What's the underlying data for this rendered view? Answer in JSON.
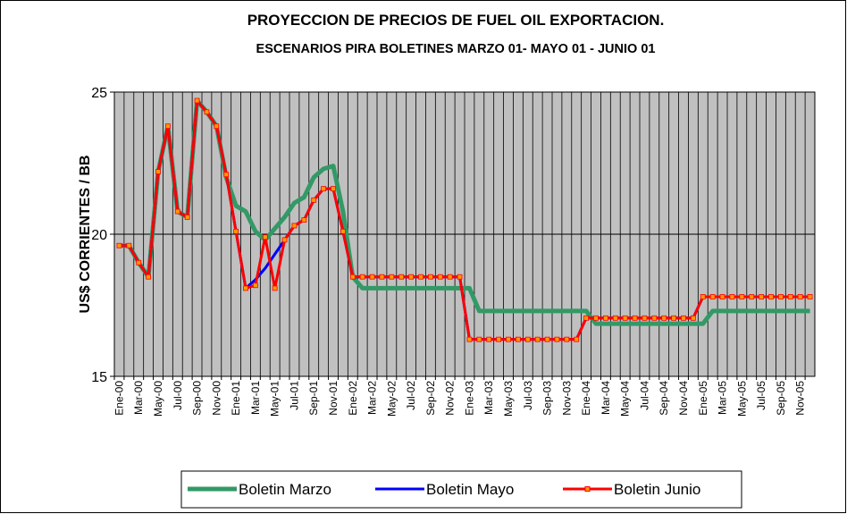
{
  "chart_data": {
    "type": "line",
    "title": "PROYECCION DE PRECIOS DE FUEL OIL EXPORTACION.",
    "subtitle": "ESCENARIOS  PIRA BOLETINES   MARZO 01- MAYO 01 - JUNIO 01",
    "y_label": "US$ CORRIENTES / BB",
    "categories": [
      "Ene-00",
      null,
      "Mar-00",
      null,
      "May-00",
      null,
      "Jul-00",
      null,
      "Sep-00",
      null,
      "Nov-00",
      null,
      "Ene-01",
      null,
      "Mar-01",
      null,
      "May-01",
      null,
      "Jul-01",
      null,
      "Sep-01",
      null,
      "Nov-01",
      null,
      "Ene-02",
      null,
      "Mar-02",
      null,
      "May-02",
      null,
      "Jul-02",
      null,
      "Sep-02",
      null,
      "Nov-02",
      null,
      "Ene-03",
      null,
      "Mar-03",
      null,
      "May-03",
      null,
      "Jul-03",
      null,
      "Sep-03",
      null,
      "Nov-03",
      null,
      "Ene-04",
      null,
      "Mar-04",
      null,
      "May-04",
      null,
      "Jul-04",
      null,
      "Sep-04",
      null,
      "Nov-04",
      null,
      "Ene-05",
      null,
      "Mar-05",
      null,
      "May-05",
      null,
      "Jul-05",
      null,
      "Sep-05",
      null,
      "Nov-05",
      null
    ],
    "series": [
      {
        "name": "Boletin Marzo",
        "color": "#339966",
        "values": [
          19.6,
          19.6,
          19.0,
          18.5,
          22.2,
          23.8,
          20.8,
          20.6,
          24.7,
          24.3,
          23.8,
          22.0,
          21.0,
          20.8,
          20.1,
          19.8,
          20.2,
          20.6,
          21.1,
          21.3,
          22.0,
          22.3,
          22.4,
          20.8,
          18.5,
          18.1,
          18.1,
          18.1,
          18.1,
          18.1,
          18.1,
          18.1,
          18.1,
          18.1,
          18.1,
          18.1,
          18.1,
          17.3,
          17.3,
          17.3,
          17.3,
          17.3,
          17.3,
          17.3,
          17.3,
          17.3,
          17.3,
          17.3,
          17.3,
          16.85,
          16.85,
          16.85,
          16.85,
          16.85,
          16.85,
          16.85,
          16.85,
          16.85,
          16.85,
          16.85,
          16.85,
          17.3,
          17.3,
          17.3,
          17.3,
          17.3,
          17.3,
          17.3,
          17.3,
          17.3,
          17.3,
          17.3
        ]
      },
      {
        "name": "Boletin Mayo",
        "color": "#0000ff",
        "values": [
          19.6,
          19.6,
          19.0,
          18.5,
          22.2,
          23.8,
          20.8,
          20.6,
          24.7,
          24.3,
          23.8,
          22.1,
          20.1,
          18.1,
          18.4,
          18.8,
          19.3,
          19.8,
          20.3,
          20.5,
          21.2,
          21.6,
          21.6,
          20.1,
          18.5,
          18.5,
          18.5,
          18.5,
          18.5,
          18.5,
          18.5,
          18.5,
          18.5,
          18.5,
          18.5,
          18.5,
          16.3,
          16.3,
          16.3,
          16.3,
          16.3,
          16.3,
          16.3,
          16.3,
          16.3,
          16.3,
          16.3,
          16.3,
          17.05,
          17.05,
          17.05,
          17.05,
          17.05,
          17.05,
          17.05,
          17.05,
          17.05,
          17.05,
          17.05,
          17.05,
          17.8,
          17.8,
          17.8,
          17.8,
          17.8,
          17.8,
          17.8,
          17.8,
          17.8,
          17.8,
          17.8,
          17.8
        ]
      },
      {
        "name": "Boletin Junio",
        "color": "#ff0000",
        "marker_color": "#ff9900",
        "values": [
          19.6,
          19.6,
          19.0,
          18.5,
          22.2,
          23.8,
          20.8,
          20.6,
          24.7,
          24.3,
          23.8,
          22.1,
          20.1,
          18.1,
          18.2,
          19.9,
          18.1,
          19.8,
          20.3,
          20.5,
          21.2,
          21.6,
          21.6,
          20.1,
          18.5,
          18.5,
          18.5,
          18.5,
          18.5,
          18.5,
          18.5,
          18.5,
          18.5,
          18.5,
          18.5,
          18.5,
          16.3,
          16.3,
          16.3,
          16.3,
          16.3,
          16.3,
          16.3,
          16.3,
          16.3,
          16.3,
          16.3,
          16.3,
          17.05,
          17.05,
          17.05,
          17.05,
          17.05,
          17.05,
          17.05,
          17.05,
          17.05,
          17.05,
          17.05,
          17.05,
          17.8,
          17.8,
          17.8,
          17.8,
          17.8,
          17.8,
          17.8,
          17.8,
          17.8,
          17.8,
          17.8,
          17.8
        ]
      }
    ],
    "ylim": [
      15,
      25
    ],
    "yticks": [
      15,
      20,
      25
    ],
    "grid": true,
    "legend": "bottom"
  }
}
